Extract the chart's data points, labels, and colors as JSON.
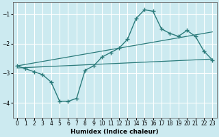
{
  "xlabel": "Humidex (Indice chaleur)",
  "bg_color": "#cceaf0",
  "grid_color": "#ffffff",
  "line_color": "#2a7a7a",
  "xlim": [
    -0.5,
    23.5
  ],
  "ylim": [
    -4.5,
    -0.6
  ],
  "yticks": [
    -4,
    -3,
    -2,
    -1
  ],
  "xticks": [
    0,
    1,
    2,
    3,
    4,
    5,
    6,
    7,
    8,
    9,
    10,
    11,
    12,
    13,
    14,
    15,
    16,
    17,
    18,
    19,
    20,
    21,
    22,
    23
  ],
  "main_x": [
    0,
    1,
    2,
    3,
    4,
    5,
    6,
    7,
    8,
    9,
    10,
    11,
    12,
    13,
    14,
    15,
    16,
    17,
    18,
    19,
    20,
    21,
    22,
    23
  ],
  "main_y": [
    -2.75,
    -2.85,
    -2.95,
    -3.05,
    -3.3,
    -3.95,
    -3.95,
    -3.85,
    -2.9,
    -2.75,
    -2.45,
    -2.3,
    -2.15,
    -1.85,
    -1.15,
    -0.85,
    -0.9,
    -1.5,
    -1.65,
    -1.75,
    -1.55,
    -1.75,
    -2.25,
    -2.55
  ],
  "trend1_x": [
    0,
    23
  ],
  "trend1_y": [
    -2.75,
    -1.6
  ],
  "trend2_x": [
    0,
    23
  ],
  "trend2_y": [
    -2.82,
    -2.52
  ]
}
